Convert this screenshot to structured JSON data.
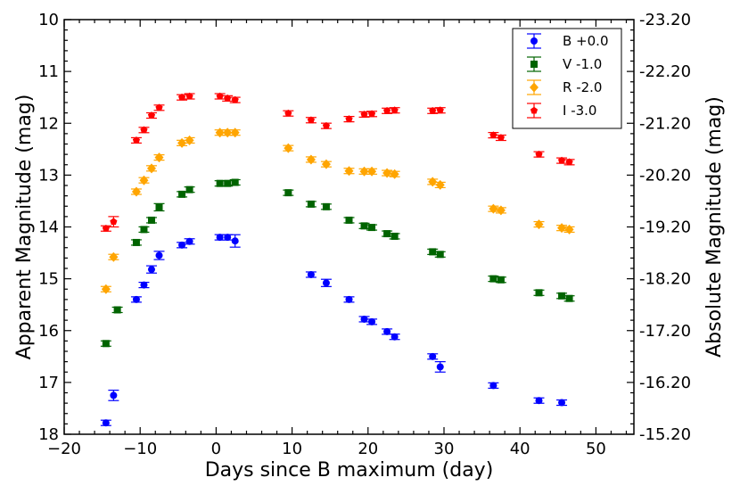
{
  "chart_data": {
    "type": "scatter",
    "title": "",
    "xlabel": "Days since B maximum  (day)",
    "ylabel": "Apparent Magnitude  (mag)",
    "ylabel_right": "Absolute Magnitude  (mag)",
    "xlim": [
      -20,
      55
    ],
    "ylim": [
      18,
      10
    ],
    "ylim_right": [
      -15.2,
      -23.2
    ],
    "y_inverted": true,
    "x_ticks": [
      -20,
      -10,
      0,
      10,
      20,
      30,
      40,
      50
    ],
    "x_tick_labels": [
      "−20",
      "−10",
      "0",
      "10",
      "20",
      "30",
      "40",
      "50"
    ],
    "y_ticks": [
      10,
      11,
      12,
      13,
      14,
      15,
      16,
      17,
      18
    ],
    "y_tick_labels": [
      "10",
      "11",
      "12",
      "13",
      "14",
      "15",
      "16",
      "17",
      "18"
    ],
    "y_right_ticks": [
      -23.2,
      -22.2,
      -21.2,
      -20.2,
      -19.2,
      -18.2,
      -17.2,
      -16.2,
      -15.2
    ],
    "y_right_tick_labels": [
      "-23.20",
      "-22.20",
      "-21.20",
      "-20.20",
      "-19.20",
      "-18.20",
      "-17.20",
      "-16.20",
      "-15.20"
    ],
    "legend_position": "top-right",
    "series": [
      {
        "name": "B +0.0",
        "marker": "circle",
        "color": "#0000ff",
        "points": [
          [
            -14.5,
            17.78,
            0.05
          ],
          [
            -13.5,
            17.25,
            0.1
          ],
          [
            -10.5,
            15.4,
            0.05
          ],
          [
            -9.5,
            15.12,
            0.05
          ],
          [
            -8.5,
            14.82,
            0.07
          ],
          [
            -7.5,
            14.55,
            0.08
          ],
          [
            -4.5,
            14.35,
            0.05
          ],
          [
            -3.5,
            14.28,
            0.05
          ],
          [
            0.5,
            14.2,
            0.05
          ],
          [
            1.5,
            14.2,
            0.05
          ],
          [
            2.5,
            14.27,
            0.12
          ],
          [
            12.5,
            14.92,
            0.05
          ],
          [
            14.5,
            15.08,
            0.07
          ],
          [
            17.5,
            15.4,
            0.05
          ],
          [
            19.5,
            15.78,
            0.05
          ],
          [
            20.5,
            15.83,
            0.05
          ],
          [
            22.5,
            16.02,
            0.05
          ],
          [
            23.5,
            16.12,
            0.05
          ],
          [
            28.5,
            16.5,
            0.05
          ],
          [
            29.5,
            16.7,
            0.1
          ],
          [
            36.5,
            17.06,
            0.05
          ],
          [
            42.5,
            17.35,
            0.05
          ],
          [
            45.5,
            17.39,
            0.05
          ]
        ]
      },
      {
        "name": "V -1.0",
        "marker": "square",
        "color": "#006400",
        "points": [
          [
            -14.5,
            16.25,
            0.05
          ],
          [
            -13.0,
            15.6,
            0.05
          ],
          [
            -10.5,
            14.3,
            0.05
          ],
          [
            -9.5,
            14.05,
            0.05
          ],
          [
            -8.5,
            13.87,
            0.05
          ],
          [
            -7.5,
            13.62,
            0.07
          ],
          [
            -4.5,
            13.37,
            0.05
          ],
          [
            -3.5,
            13.28,
            0.05
          ],
          [
            0.5,
            13.16,
            0.05
          ],
          [
            1.5,
            13.16,
            0.05
          ],
          [
            2.5,
            13.14,
            0.05
          ],
          [
            9.5,
            13.34,
            0.05
          ],
          [
            12.5,
            13.56,
            0.05
          ],
          [
            14.5,
            13.61,
            0.05
          ],
          [
            17.5,
            13.87,
            0.05
          ],
          [
            19.5,
            13.98,
            0.05
          ],
          [
            20.5,
            14.01,
            0.05
          ],
          [
            22.5,
            14.13,
            0.05
          ],
          [
            23.5,
            14.18,
            0.05
          ],
          [
            28.5,
            14.48,
            0.05
          ],
          [
            29.5,
            14.53,
            0.05
          ],
          [
            36.5,
            15.0,
            0.05
          ],
          [
            37.5,
            15.02,
            0.05
          ],
          [
            42.5,
            15.27,
            0.05
          ],
          [
            45.5,
            15.33,
            0.05
          ],
          [
            46.5,
            15.38,
            0.05
          ]
        ]
      },
      {
        "name": "R -2.0",
        "marker": "diamond",
        "color": "#ffa500",
        "points": [
          [
            -14.5,
            15.2,
            0.05
          ],
          [
            -13.5,
            14.58,
            0.05
          ],
          [
            -10.5,
            13.32,
            0.05
          ],
          [
            -9.5,
            13.1,
            0.05
          ],
          [
            -8.5,
            12.87,
            0.05
          ],
          [
            -7.5,
            12.66,
            0.05
          ],
          [
            -4.5,
            12.38,
            0.05
          ],
          [
            -3.5,
            12.33,
            0.05
          ],
          [
            0.5,
            12.18,
            0.05
          ],
          [
            1.5,
            12.18,
            0.05
          ],
          [
            2.5,
            12.18,
            0.05
          ],
          [
            9.5,
            12.48,
            0.05
          ],
          [
            12.5,
            12.7,
            0.05
          ],
          [
            14.5,
            12.79,
            0.05
          ],
          [
            17.5,
            12.92,
            0.05
          ],
          [
            19.5,
            12.93,
            0.05
          ],
          [
            20.5,
            12.93,
            0.05
          ],
          [
            22.5,
            12.96,
            0.05
          ],
          [
            23.5,
            12.98,
            0.05
          ],
          [
            28.5,
            13.13,
            0.05
          ],
          [
            29.5,
            13.19,
            0.05
          ],
          [
            36.5,
            13.65,
            0.05
          ],
          [
            37.5,
            13.68,
            0.05
          ],
          [
            42.5,
            13.95,
            0.05
          ],
          [
            45.5,
            14.02,
            0.05
          ],
          [
            46.5,
            14.05,
            0.05
          ]
        ]
      },
      {
        "name": "I -3.0",
        "marker": "pentagon",
        "color": "#ff0000",
        "points": [
          [
            -14.5,
            14.03,
            0.05
          ],
          [
            -13.5,
            13.9,
            0.1
          ],
          [
            -10.5,
            12.33,
            0.05
          ],
          [
            -9.5,
            12.13,
            0.05
          ],
          [
            -8.5,
            11.85,
            0.05
          ],
          [
            -7.5,
            11.7,
            0.05
          ],
          [
            -4.5,
            11.5,
            0.05
          ],
          [
            -3.5,
            11.48,
            0.05
          ],
          [
            0.5,
            11.48,
            0.05
          ],
          [
            1.5,
            11.52,
            0.05
          ],
          [
            2.5,
            11.55,
            0.05
          ],
          [
            9.5,
            11.81,
            0.05
          ],
          [
            12.5,
            11.94,
            0.05
          ],
          [
            14.5,
            12.05,
            0.05
          ],
          [
            17.5,
            11.92,
            0.05
          ],
          [
            19.5,
            11.83,
            0.05
          ],
          [
            20.5,
            11.82,
            0.05
          ],
          [
            22.5,
            11.76,
            0.05
          ],
          [
            23.5,
            11.75,
            0.05
          ],
          [
            28.5,
            11.76,
            0.05
          ],
          [
            29.5,
            11.75,
            0.05
          ],
          [
            36.5,
            12.23,
            0.05
          ],
          [
            37.5,
            12.28,
            0.05
          ],
          [
            42.5,
            12.6,
            0.05
          ],
          [
            45.5,
            12.72,
            0.05
          ],
          [
            46.5,
            12.75,
            0.05
          ]
        ]
      }
    ]
  }
}
